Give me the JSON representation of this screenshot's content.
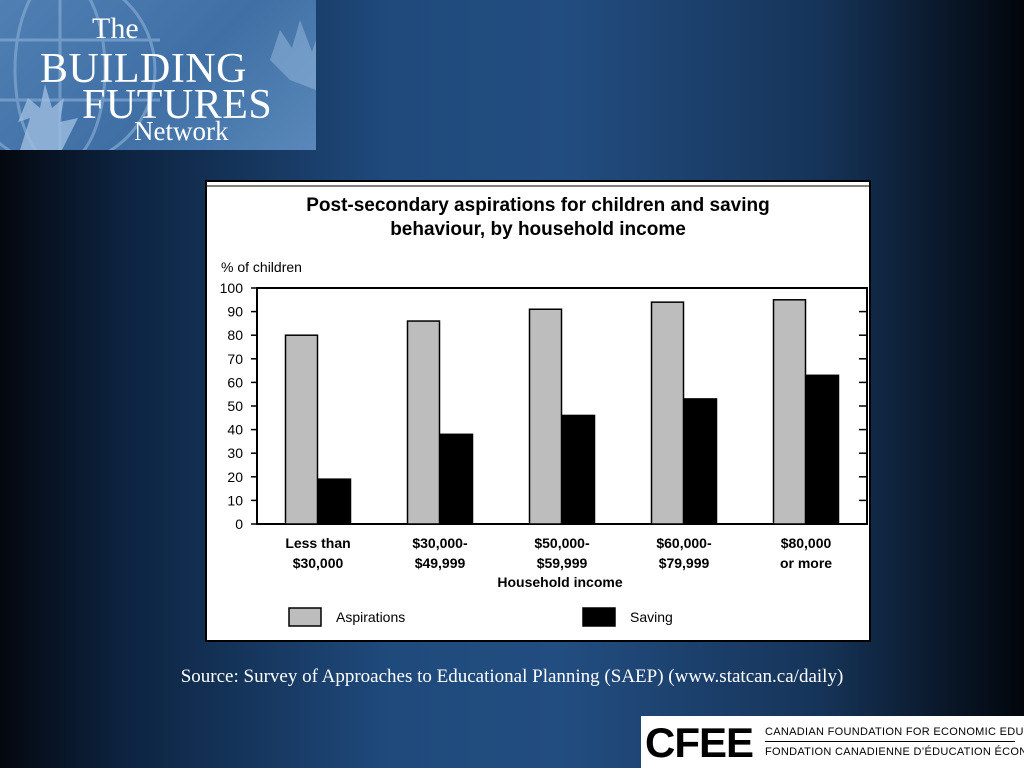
{
  "logo": {
    "the": "The",
    "line1": "BUILDING",
    "line2": "FUTURES",
    "line3": "Network"
  },
  "chart_data": {
    "type": "bar",
    "title_line1": "Post-secondary aspirations for children and saving",
    "title_line2": "behaviour, by household income",
    "ylabel": "% of children",
    "xlabel": "Household income",
    "ylim": [
      0,
      100
    ],
    "yticks": [
      0,
      10,
      20,
      30,
      40,
      50,
      60,
      70,
      80,
      90,
      100
    ],
    "categories": [
      [
        "Less than",
        "$30,000"
      ],
      [
        "$30,000-",
        "$49,999"
      ],
      [
        "$50,000-",
        "$59,999"
      ],
      [
        "$60,000-",
        "$79,999"
      ],
      [
        "$80,000",
        "or more"
      ]
    ],
    "series": [
      {
        "name": "Aspirations",
        "color": "#bdbdbd",
        "values": [
          80,
          86,
          91,
          94,
          95
        ]
      },
      {
        "name": "Saving",
        "color": "#000000",
        "values": [
          19,
          38,
          46,
          53,
          63
        ]
      }
    ],
    "legend_position": "bottom",
    "grid": false
  },
  "source": "Source: Survey of Approaches to Educational Planning (SAEP) (www.statcan.ca/daily)",
  "cfee": {
    "mark": "CFEE",
    "english": "CANADIAN FOUNDATION FOR ECONOMIC EDUCATION",
    "french": "FONDATION CANADIENNE D’ÉDUCATION ÉCONOMIQUE"
  }
}
